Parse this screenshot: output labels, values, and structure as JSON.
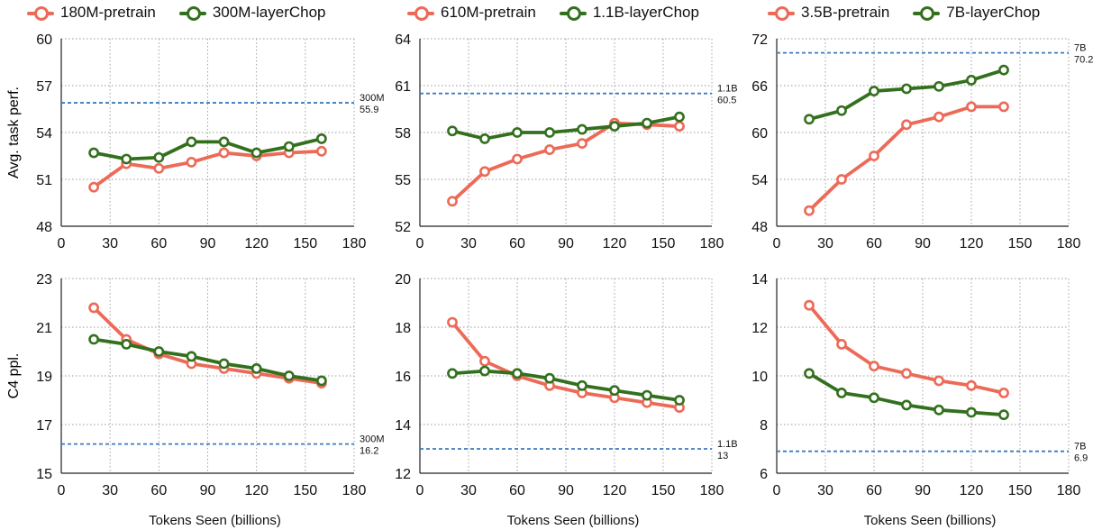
{
  "chart_data": [
    {
      "type": "line",
      "panel": "top-left",
      "ylabel": "Avg. task perf.",
      "xlabel": "",
      "xlim": [
        0,
        180
      ],
      "ylim": [
        48,
        60
      ],
      "xticks": [
        0,
        30,
        60,
        90,
        120,
        150,
        180
      ],
      "yticks": [
        48,
        51,
        54,
        57,
        60
      ],
      "grid": true,
      "series": [
        {
          "name": "180M-pretrain",
          "color": "#ec6a57",
          "x": [
            20,
            40,
            60,
            80,
            100,
            120,
            140,
            160
          ],
          "y": [
            50.5,
            52.0,
            51.7,
            52.1,
            52.7,
            52.5,
            52.7,
            52.8
          ]
        },
        {
          "name": "300M-layerChop",
          "color": "#33701e",
          "x": [
            20,
            40,
            60,
            80,
            100,
            120,
            140,
            160
          ],
          "y": [
            52.7,
            52.3,
            52.4,
            53.4,
            53.4,
            52.7,
            53.1,
            53.6
          ]
        }
      ],
      "ref": {
        "label": "300M",
        "value": 55.9,
        "value_text": "55.9"
      }
    },
    {
      "type": "line",
      "panel": "top-middle",
      "ylabel": "",
      "xlabel": "",
      "xlim": [
        0,
        180
      ],
      "ylim": [
        52,
        64
      ],
      "xticks": [
        0,
        30,
        60,
        90,
        120,
        150,
        180
      ],
      "yticks": [
        52,
        55,
        58,
        61,
        64
      ],
      "grid": true,
      "series": [
        {
          "name": "610M-pretrain",
          "color": "#ec6a57",
          "x": [
            20,
            40,
            60,
            80,
            100,
            120,
            140,
            160
          ],
          "y": [
            53.6,
            55.5,
            56.3,
            56.9,
            57.3,
            58.6,
            58.5,
            58.4
          ]
        },
        {
          "name": "1.1B-layerChop",
          "color": "#33701e",
          "x": [
            20,
            40,
            60,
            80,
            100,
            120,
            140,
            160
          ],
          "y": [
            58.1,
            57.6,
            58.0,
            58.0,
            58.2,
            58.4,
            58.6,
            59.0
          ]
        }
      ],
      "ref": {
        "label": "1.1B",
        "value": 60.5,
        "value_text": "60.5"
      }
    },
    {
      "type": "line",
      "panel": "top-right",
      "ylabel": "",
      "xlabel": "",
      "xlim": [
        0,
        180
      ],
      "ylim": [
        48,
        72
      ],
      "xticks": [
        0,
        30,
        60,
        90,
        120,
        150,
        180
      ],
      "yticks": [
        48,
        54,
        60,
        66,
        72
      ],
      "grid": true,
      "series": [
        {
          "name": "3.5B-pretrain",
          "color": "#ec6a57",
          "x": [
            20,
            40,
            60,
            80,
            100,
            120,
            140
          ],
          "y": [
            50.0,
            54.0,
            57.0,
            61.0,
            62.0,
            63.3,
            63.3
          ]
        },
        {
          "name": "7B-layerChop",
          "color": "#33701e",
          "x": [
            20,
            40,
            60,
            80,
            100,
            120,
            140
          ],
          "y": [
            61.7,
            62.8,
            65.3,
            65.6,
            65.9,
            66.7,
            68.0
          ]
        }
      ],
      "ref": {
        "label": "7B",
        "value": 70.2,
        "value_text": "70.2"
      }
    },
    {
      "type": "line",
      "panel": "bottom-left",
      "ylabel": "C4 ppl.",
      "xlabel": "Tokens Seen (billions)",
      "xlim": [
        0,
        180
      ],
      "ylim": [
        15,
        23
      ],
      "xticks": [
        0,
        30,
        60,
        90,
        120,
        150,
        180
      ],
      "yticks": [
        15,
        17,
        19,
        21,
        23
      ],
      "grid": true,
      "series": [
        {
          "name": "180M-pretrain",
          "color": "#ec6a57",
          "x": [
            20,
            40,
            60,
            80,
            100,
            120,
            140,
            160
          ],
          "y": [
            21.8,
            20.5,
            19.9,
            19.5,
            19.3,
            19.1,
            18.9,
            18.7
          ]
        },
        {
          "name": "300M-layerChop",
          "color": "#33701e",
          "x": [
            20,
            40,
            60,
            80,
            100,
            120,
            140,
            160
          ],
          "y": [
            20.5,
            20.3,
            20.0,
            19.8,
            19.5,
            19.3,
            19.0,
            18.8
          ]
        }
      ],
      "ref": {
        "label": "300M",
        "value": 16.2,
        "value_text": "16.2"
      }
    },
    {
      "type": "line",
      "panel": "bottom-middle",
      "ylabel": "",
      "xlabel": "Tokens Seen (billions)",
      "xlim": [
        0,
        180
      ],
      "ylim": [
        12,
        20
      ],
      "xticks": [
        0,
        30,
        60,
        90,
        120,
        150,
        180
      ],
      "yticks": [
        12,
        14,
        16,
        18,
        20
      ],
      "grid": true,
      "series": [
        {
          "name": "610M-pretrain",
          "color": "#ec6a57",
          "x": [
            20,
            40,
            60,
            80,
            100,
            120,
            140,
            160
          ],
          "y": [
            18.2,
            16.6,
            16.0,
            15.6,
            15.3,
            15.1,
            14.9,
            14.7
          ]
        },
        {
          "name": "1.1B-layerChop",
          "color": "#33701e",
          "x": [
            20,
            40,
            60,
            80,
            100,
            120,
            140,
            160
          ],
          "y": [
            16.1,
            16.2,
            16.1,
            15.9,
            15.6,
            15.4,
            15.2,
            15.0
          ]
        }
      ],
      "ref": {
        "label": "1.1B",
        "value": 13,
        "value_text": "13"
      }
    },
    {
      "type": "line",
      "panel": "bottom-right",
      "ylabel": "",
      "xlabel": "Tokens Seen (billions)",
      "xlim": [
        0,
        180
      ],
      "ylim": [
        6,
        14
      ],
      "xticks": [
        0,
        30,
        60,
        90,
        120,
        150,
        180
      ],
      "yticks": [
        6,
        8,
        10,
        12,
        14
      ],
      "grid": true,
      "series": [
        {
          "name": "3.5B-pretrain",
          "color": "#ec6a57",
          "x": [
            20,
            40,
            60,
            80,
            100,
            120,
            140
          ],
          "y": [
            12.9,
            11.3,
            10.4,
            10.1,
            9.8,
            9.6,
            9.3
          ]
        },
        {
          "name": "7B-layerChop",
          "color": "#33701e",
          "x": [
            20,
            40,
            60,
            80,
            100,
            120,
            140
          ],
          "y": [
            10.1,
            9.3,
            9.1,
            8.8,
            8.6,
            8.5,
            8.4
          ]
        }
      ],
      "ref": {
        "label": "7B",
        "value": 6.9,
        "value_text": "6.9"
      }
    }
  ],
  "legends": [
    {
      "items": [
        {
          "label": "180M-pretrain",
          "color": "#ec6a57"
        },
        {
          "label": "300M-layerChop",
          "color": "#33701e"
        }
      ]
    },
    {
      "items": [
        {
          "label": "610M-pretrain",
          "color": "#ec6a57"
        },
        {
          "label": "1.1B-layerChop",
          "color": "#33701e"
        }
      ]
    },
    {
      "items": [
        {
          "label": "3.5B-pretrain",
          "color": "#ec6a57"
        },
        {
          "label": "7B-layerChop",
          "color": "#33701e"
        }
      ]
    }
  ],
  "ref_line_color": "#3b7bbf"
}
